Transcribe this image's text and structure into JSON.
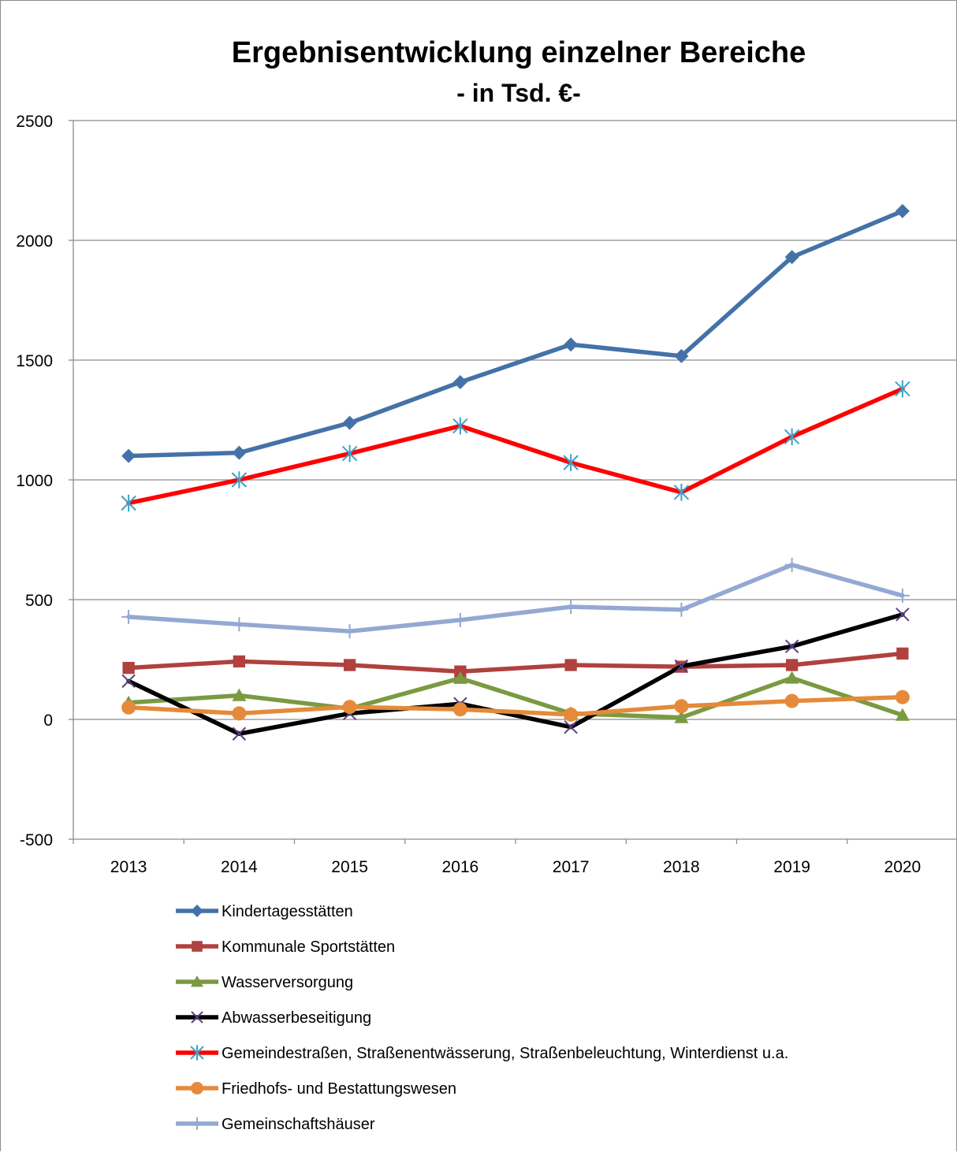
{
  "chart_data": {
    "type": "line",
    "title": "Ergebnisentwicklung einzelner Bereiche",
    "subtitle": "- in Tsd. €-",
    "categories": [
      "2013",
      "2014",
      "2015",
      "2016",
      "2017",
      "2018",
      "2019",
      "2020"
    ],
    "ylim": [
      -500,
      2500
    ],
    "yticks": [
      2500,
      2000,
      1500,
      1000,
      500,
      0,
      -500
    ],
    "grid": true,
    "legend_position": "bottom",
    "series": [
      {
        "name": "Kindertagesstätten",
        "color": "#4472a8",
        "marker": "diamond",
        "values": [
          1100,
          1113,
          1238,
          1408,
          1565,
          1517,
          1930,
          2122
        ]
      },
      {
        "name": "Kommunale Sportstätten",
        "color": "#b0413e",
        "marker": "square",
        "values": [
          215,
          242,
          227,
          200,
          227,
          220,
          227,
          275
        ]
      },
      {
        "name": "Wasserversorgung",
        "color": "#7a9a42",
        "marker": "triangle",
        "values": [
          70,
          100,
          45,
          172,
          25,
          8,
          173,
          18
        ]
      },
      {
        "name": "Abwasserbeseitigung",
        "color": "#000000",
        "marker": "x",
        "markerColor": "#5a3f82",
        "values": [
          160,
          -60,
          25,
          65,
          -32,
          222,
          305,
          438
        ]
      },
      {
        "name": "Gemeindestraßen, Straßenentwässerung, Straßenbeleuchtung, Winterdienst u.a.",
        "color": "#ff0000",
        "marker": "star",
        "markerColor": "#3ea0c8",
        "values": [
          903,
          1000,
          1110,
          1225,
          1072,
          948,
          1180,
          1380
        ]
      },
      {
        "name": "Friedhofs- und Bestattungswesen",
        "color": "#e58a3a",
        "marker": "circle",
        "values": [
          50,
          25,
          52,
          42,
          20,
          55,
          77,
          93
        ]
      },
      {
        "name": "Gemeinschaftshäuser",
        "color": "#93a9d2",
        "marker": "plus",
        "values": [
          428,
          397,
          368,
          415,
          470,
          458,
          645,
          517
        ]
      }
    ]
  }
}
